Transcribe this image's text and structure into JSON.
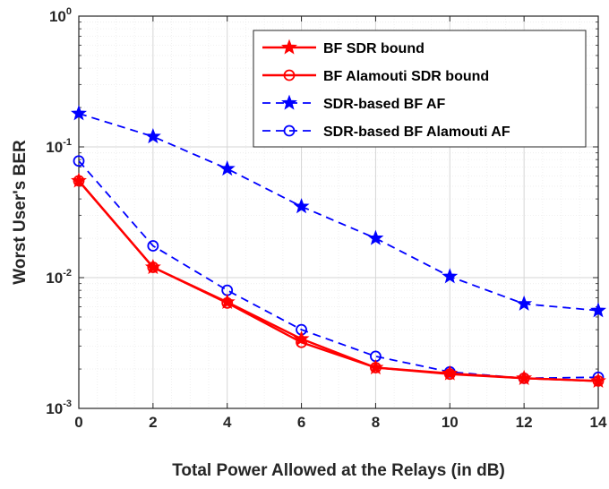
{
  "chart_data": {
    "type": "line",
    "title": "",
    "xlabel": "Total Power Allowed at the Relays (in dB)",
    "ylabel": "Worst User's BER",
    "x": [
      0,
      2,
      4,
      6,
      8,
      10,
      12,
      14
    ],
    "xlim": [
      0,
      14
    ],
    "ylim": [
      0.001,
      1
    ],
    "yscale": "log",
    "grid": true,
    "minor_grid": true,
    "legend_position": "top-right",
    "xticks": [
      0,
      2,
      4,
      6,
      8,
      10,
      12,
      14
    ],
    "yticks": [
      {
        "base": "10",
        "exp": "-3",
        "value": 0.001
      },
      {
        "base": "10",
        "exp": "-2",
        "value": 0.01
      },
      {
        "base": "10",
        "exp": "-1",
        "value": 0.1
      },
      {
        "base": "10",
        "exp": "0",
        "value": 1
      }
    ],
    "series": [
      {
        "name": "BF SDR bound",
        "color": "#ff0000",
        "dash": "solid",
        "marker": "star",
        "values": [
          0.055,
          0.012,
          0.0065,
          0.0034,
          0.00205,
          0.00185,
          0.0017,
          0.00162
        ]
      },
      {
        "name": "BF Alamouti SDR bound",
        "color": "#ff0000",
        "dash": "solid",
        "marker": "circle",
        "values": [
          0.055,
          0.012,
          0.0064,
          0.0032,
          0.00205,
          0.00183,
          0.0017,
          0.00162
        ]
      },
      {
        "name": "SDR-based BF AF",
        "color": "#0000ff",
        "dash": "dashed",
        "marker": "star",
        "values": [
          0.18,
          0.12,
          0.068,
          0.035,
          0.02,
          0.0102,
          0.0063,
          0.0056
        ]
      },
      {
        "name": "SDR-based BF Alamouti AF",
        "color": "#0000ff",
        "dash": "dashed",
        "marker": "circle",
        "values": [
          0.078,
          0.0175,
          0.008,
          0.004,
          0.0025,
          0.0019,
          0.0017,
          0.00173
        ]
      }
    ]
  }
}
